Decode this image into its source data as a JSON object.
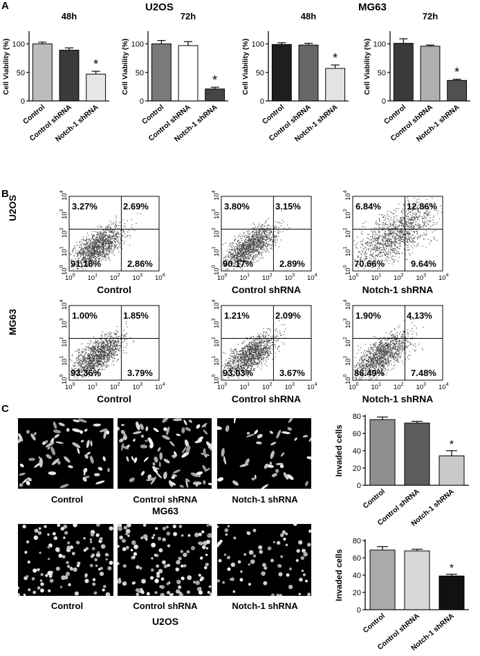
{
  "panels": {
    "a": "A",
    "b": "B",
    "c": "C"
  },
  "sectionA": {
    "cellLines": [
      "U2OS",
      "MG63"
    ],
    "charts": [
      {
        "time": "48h",
        "ylabel": "Cell  Viability (%)",
        "categories": [
          "Control",
          "Control shRNA",
          "Notch-1 shRNA"
        ],
        "values": [
          100,
          89,
          47
        ],
        "errors": [
          3,
          4,
          5
        ],
        "ylim": [
          0,
          120
        ],
        "ticks": [
          0,
          50,
          100
        ],
        "star": "*",
        "fills": [
          "#bdbdbd",
          "#3b3b3b",
          "#e6e6e6"
        ]
      },
      {
        "time": "72h",
        "ylabel": "Cell  Viability (%)",
        "categories": [
          "Control",
          "Control shRNA",
          "Notch-1 shRNA"
        ],
        "values": [
          100,
          97,
          21
        ],
        "errors": [
          6,
          7,
          3
        ],
        "ylim": [
          0,
          120
        ],
        "ticks": [
          0,
          50,
          100
        ],
        "star": "*",
        "fills": [
          "#7a7a7a",
          "#ffffff",
          "#444444"
        ]
      },
      {
        "time": "48h",
        "ylabel": "Cell  Viability (%)",
        "categories": [
          "Control",
          "Control shRNA",
          "Notch-1 shRNA"
        ],
        "values": [
          99,
          98,
          57
        ],
        "errors": [
          3,
          3,
          6
        ],
        "ylim": [
          0,
          120
        ],
        "ticks": [
          0,
          50,
          100
        ],
        "star": "*",
        "fills": [
          "#1f1f1f",
          "#666666",
          "#e3e3e3"
        ]
      },
      {
        "time": "72h",
        "ylabel": "Cell  Viability (%)",
        "categories": [
          "Control",
          "Control shRNA",
          "Notch-1 shRNA"
        ],
        "values": [
          101,
          96,
          36
        ],
        "errors": [
          8,
          2,
          2
        ],
        "ylim": [
          0,
          120
        ],
        "ticks": [
          0,
          50,
          100
        ],
        "star": "*",
        "fills": [
          "#3a3a3a",
          "#b0b0b0",
          "#505050"
        ]
      }
    ]
  },
  "sectionB": {
    "rowLabels": [
      "U2OS",
      "MG63"
    ],
    "axisTicks": [
      "10",
      "10",
      "10",
      "10",
      "10"
    ],
    "axisExps": [
      "0",
      "1",
      "2",
      "3",
      "4"
    ],
    "plots": [
      {
        "caption": "Control",
        "ul": "3.27%",
        "ur": "2.69%",
        "ll": "91.18%",
        "lr": "2.86%"
      },
      {
        "caption": "Control shRNA",
        "ul": "3.80%",
        "ur": "3.15%",
        "ll": "90.17%",
        "lr": "2.89%"
      },
      {
        "caption": "Notch-1 shRNA",
        "ul": "6.84%",
        "ur": "12.86%",
        "ll": "70.66%",
        "lr": "9.64%"
      },
      {
        "caption": "Control",
        "ul": "1.00%",
        "ur": "1.85%",
        "ll": "93.36%",
        "lr": "3.79%"
      },
      {
        "caption": "Control shRNA",
        "ul": "1.21%",
        "ur": "2.09%",
        "ll": "93.03%",
        "lr": "3.67%"
      },
      {
        "caption": "Notch-1 shRNA",
        "ul": "1.90%",
        "ur": "4.13%",
        "ll": "86.49%",
        "lr": "7.48%"
      }
    ]
  },
  "sectionC": {
    "rows": [
      {
        "cellLine": "MG63",
        "captions": [
          "Control",
          "Control shRNA",
          "Notch-1 shRNA"
        ]
      },
      {
        "cellLine": "U2OS",
        "captions": [
          "Control",
          "Control shRNA",
          "Notch-1 shRNA"
        ]
      }
    ]
  },
  "chart_data": [
    {
      "type": "bar",
      "ylabel": "Invaded cells",
      "categories": [
        "Control",
        "Control shRNA",
        "Notch-1 shRNA"
      ],
      "values": [
        76,
        72,
        34
      ],
      "errors": [
        3,
        2,
        6
      ],
      "ylim": [
        0,
        80
      ],
      "ticks": [
        0,
        20,
        40,
        60,
        80
      ],
      "star": "*",
      "fills": [
        "#8f8f8f",
        "#5c5c5c",
        "#c9c9c9"
      ]
    },
    {
      "type": "bar",
      "ylabel": "Invaded cells",
      "categories": [
        "Control",
        "Control shRNA",
        "Notch-1 shRNA"
      ],
      "values": [
        69,
        68,
        39
      ],
      "errors": [
        4,
        2,
        2
      ],
      "ylim": [
        0,
        80
      ],
      "ticks": [
        0,
        20,
        40,
        60,
        80
      ],
      "star": "*",
      "fills": [
        "#aaaaaa",
        "#d8d8d8",
        "#111111"
      ]
    }
  ]
}
